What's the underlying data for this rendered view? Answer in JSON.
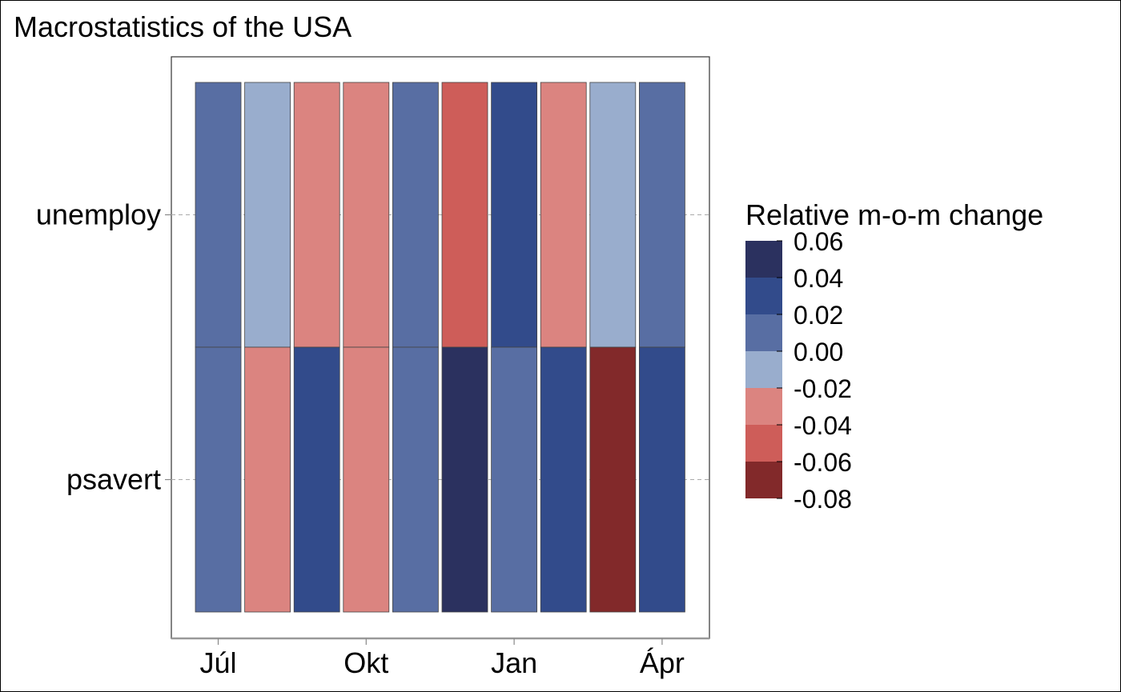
{
  "chart_data": {
    "type": "heatmap",
    "title": "Macrostatistics of the USA",
    "xlabel": "",
    "ylabel": "",
    "x_tick_labels": [
      {
        "label": "Júl",
        "at_column": 1
      },
      {
        "label": "Okt",
        "at_column": 4
      },
      {
        "label": "Jan",
        "at_column": 7
      },
      {
        "label": "Ápr",
        "at_column": 10
      }
    ],
    "columns": 10,
    "rows": [
      {
        "name": "unemploy",
        "values": [
          0.01,
          -0.01,
          -0.03,
          -0.03,
          0.01,
          -0.05,
          0.03,
          -0.03,
          -0.01,
          0.01
        ]
      },
      {
        "name": "psavert",
        "values": [
          0.01,
          -0.03,
          0.03,
          -0.03,
          0.01,
          0.05,
          0.01,
          0.03,
          -0.07,
          0.03
        ]
      }
    ],
    "legend": {
      "title": "Relative m-o-m change",
      "position": "right",
      "breaks": [
        0.06,
        0.04,
        0.02,
        0.0,
        -0.02,
        -0.04,
        -0.06,
        -0.08
      ],
      "break_labels": [
        "0.06",
        "0.04",
        "0.02",
        "0.00",
        "-0.02",
        "-0.04",
        "-0.06",
        "-0.08"
      ],
      "bins": [
        {
          "min": 0.04,
          "max": 0.06,
          "color": "#2b315f"
        },
        {
          "min": 0.02,
          "max": 0.04,
          "color": "#324b8b"
        },
        {
          "min": 0.0,
          "max": 0.02,
          "color": "#586ea3"
        },
        {
          "min": -0.02,
          "max": 0.0,
          "color": "#99adcd"
        },
        {
          "min": -0.04,
          "max": -0.02,
          "color": "#db8480"
        },
        {
          "min": -0.06,
          "max": -0.04,
          "color": "#ce5d59"
        },
        {
          "min": -0.08,
          "max": -0.06,
          "color": "#82292a"
        }
      ]
    },
    "grid": "horizontal dashed",
    "border_color": "#444444",
    "grid_color": "#aaaaaa"
  }
}
